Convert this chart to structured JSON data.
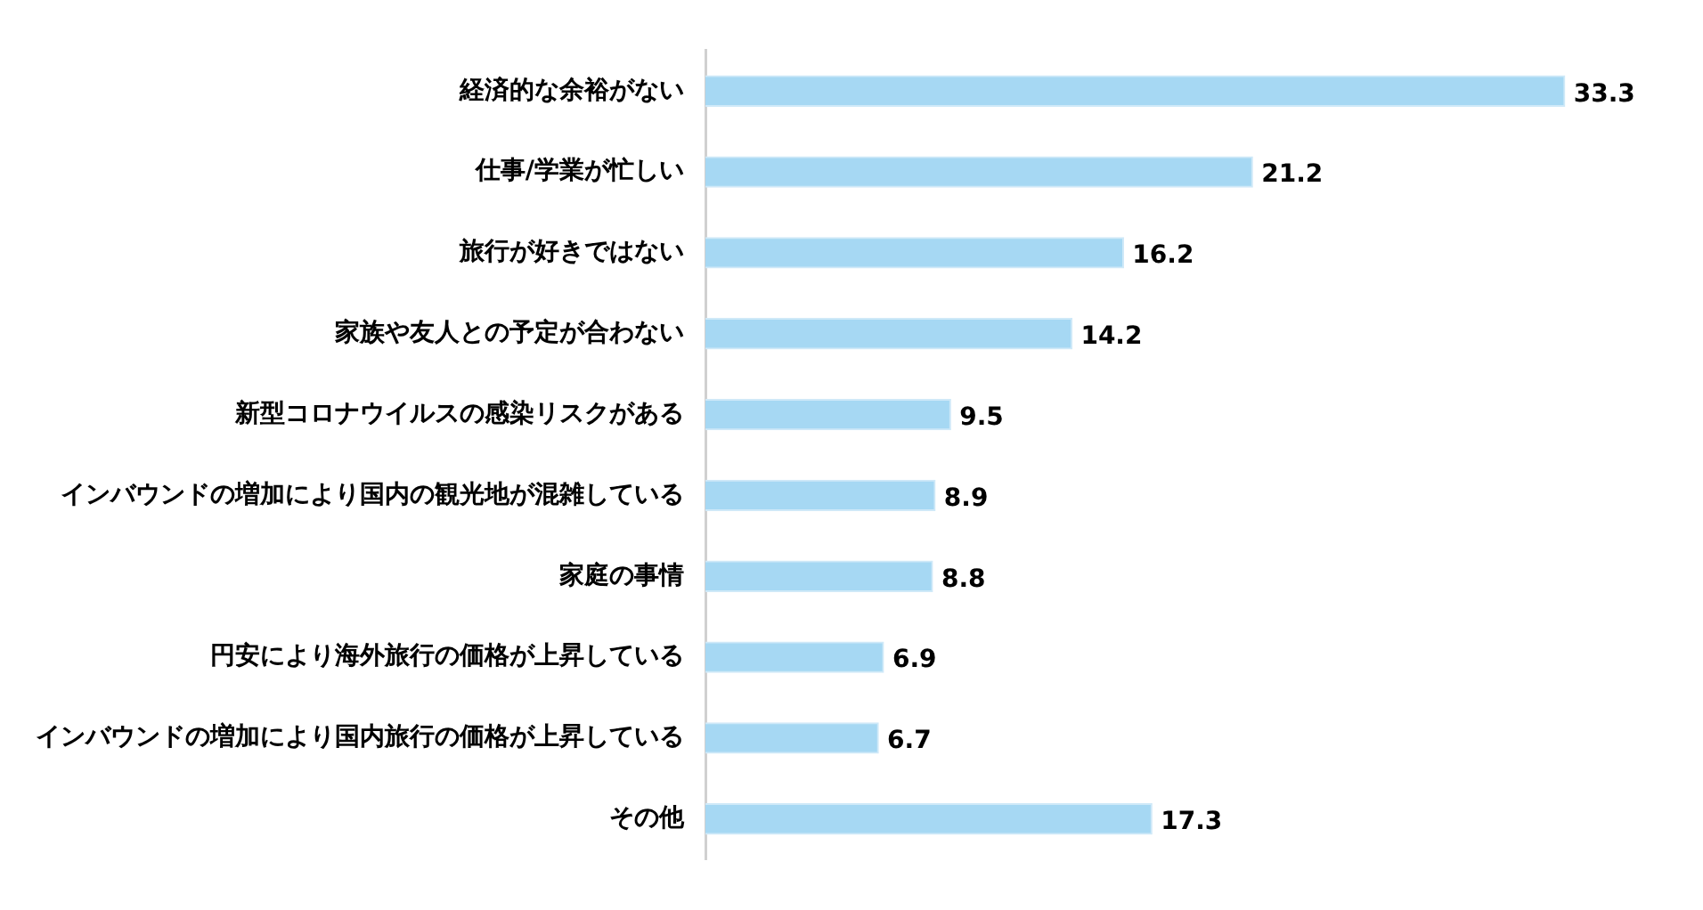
{
  "chart_data": {
    "type": "bar",
    "orientation": "horizontal",
    "categories": [
      "経済的な余裕がない",
      "仕事/学業が忙しい",
      "旅行が好きではない",
      "家族や友人との予定が合わない",
      "新型コロナウイルスの感染リスクがある",
      "インバウンドの増加により国内の観光地が混雑している",
      "家庭の事情",
      "円安により海外旅行の価格が上昇している",
      "インバウンドの増加により国内旅行の価格が上昇している",
      "その他"
    ],
    "values": [
      33.3,
      21.2,
      16.2,
      14.2,
      9.5,
      8.9,
      8.8,
      6.9,
      6.7,
      17.3
    ],
    "color": "#a6d8f3",
    "data_labels": true,
    "grid": false,
    "legend": false
  }
}
